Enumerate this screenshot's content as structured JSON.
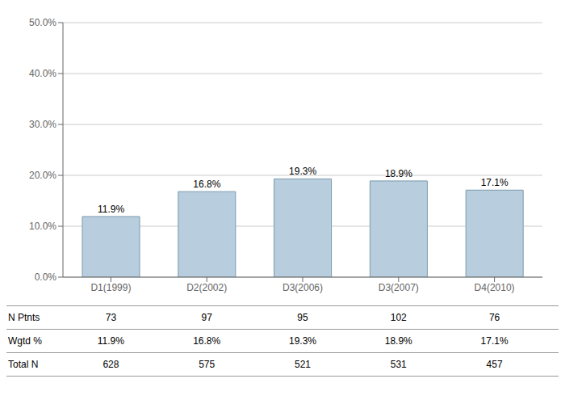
{
  "chart_data": {
    "type": "bar",
    "categories": [
      "D1(1999)",
      "D2(2002)",
      "D3(2006)",
      "D3(2007)",
      "D4(2010)"
    ],
    "values": [
      11.9,
      16.8,
      19.3,
      18.9,
      17.1
    ],
    "value_labels": [
      "11.9%",
      "16.8%",
      "19.3%",
      "18.9%",
      "17.1%"
    ],
    "data_labels": true,
    "color": "#b8cede",
    "ylim": [
      0,
      50
    ],
    "yticks": [
      {
        "value": 0,
        "label": "0.0%"
      },
      {
        "value": 10,
        "label": "10.0%"
      },
      {
        "value": 20,
        "label": "20.0%"
      },
      {
        "value": 30,
        "label": "30.0%"
      },
      {
        "value": 40,
        "label": "40.0%"
      },
      {
        "value": 50,
        "label": "50.0%"
      }
    ],
    "grid": true,
    "table": [
      {
        "label": "N Ptnts",
        "cells": [
          "73",
          "97",
          "95",
          "102",
          "76"
        ]
      },
      {
        "label": "Wgtd %",
        "cells": [
          "11.9%",
          "16.8%",
          "19.3%",
          "18.9%",
          "17.1%"
        ]
      },
      {
        "label": "Total N",
        "cells": [
          "628",
          "575",
          "521",
          "531",
          "457"
        ]
      }
    ]
  }
}
